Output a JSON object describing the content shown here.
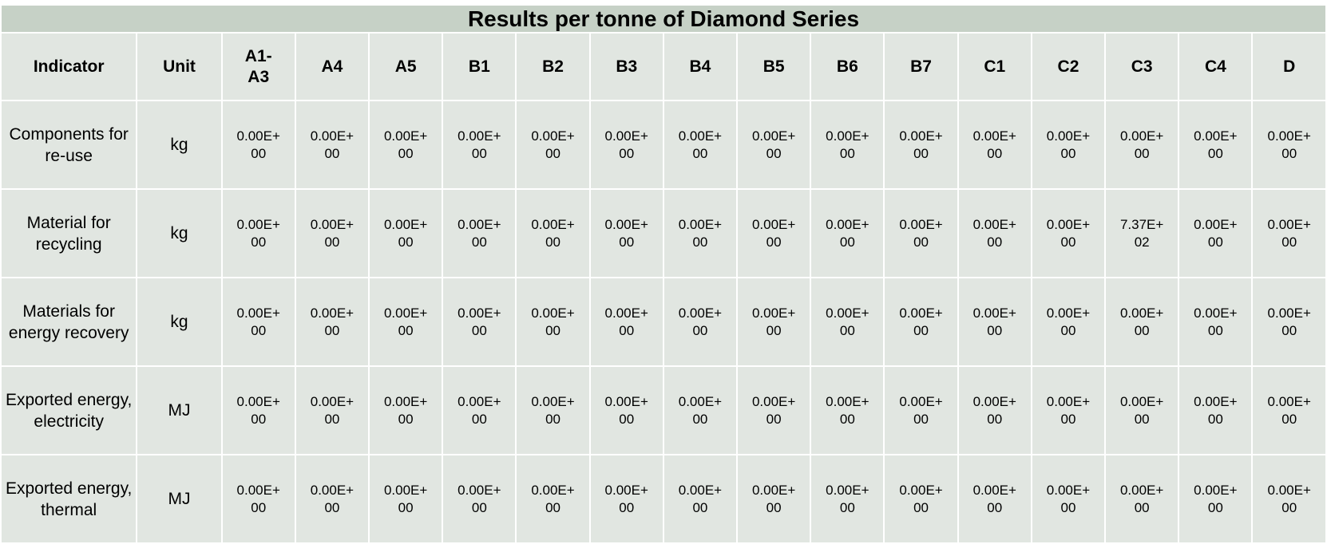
{
  "table": {
    "title": "Results per tonne of Diamond Series",
    "headers": [
      "Indicator",
      "Unit",
      "A1-A3",
      "A4",
      "A5",
      "B1",
      "B2",
      "B3",
      "B4",
      "B5",
      "B6",
      "B7",
      "C1",
      "C2",
      "C3",
      "C4",
      "D"
    ],
    "rows": [
      {
        "indicator": "Components for re-use",
        "unit": "kg",
        "values": [
          "0.00E+00",
          "0.00E+00",
          "0.00E+00",
          "0.00E+00",
          "0.00E+00",
          "0.00E+00",
          "0.00E+00",
          "0.00E+00",
          "0.00E+00",
          "0.00E+00",
          "0.00E+00",
          "0.00E+00",
          "0.00E+00",
          "0.00E+00",
          "0.00E+00"
        ]
      },
      {
        "indicator": "Material for recycling",
        "unit": "kg",
        "values": [
          "0.00E+00",
          "0.00E+00",
          "0.00E+00",
          "0.00E+00",
          "0.00E+00",
          "0.00E+00",
          "0.00E+00",
          "0.00E+00",
          "0.00E+00",
          "0.00E+00",
          "0.00E+00",
          "0.00E+00",
          "7.37E+02",
          "0.00E+00",
          "0.00E+00"
        ]
      },
      {
        "indicator": "Materials for energy recovery",
        "unit": "kg",
        "values": [
          "0.00E+00",
          "0.00E+00",
          "0.00E+00",
          "0.00E+00",
          "0.00E+00",
          "0.00E+00",
          "0.00E+00",
          "0.00E+00",
          "0.00E+00",
          "0.00E+00",
          "0.00E+00",
          "0.00E+00",
          "0.00E+00",
          "0.00E+00",
          "0.00E+00"
        ]
      },
      {
        "indicator": "Exported energy, electricity",
        "unit": "MJ",
        "values": [
          "0.00E+00",
          "0.00E+00",
          "0.00E+00",
          "0.00E+00",
          "0.00E+00",
          "0.00E+00",
          "0.00E+00",
          "0.00E+00",
          "0.00E+00",
          "0.00E+00",
          "0.00E+00",
          "0.00E+00",
          "0.00E+00",
          "0.00E+00",
          "0.00E+00"
        ]
      },
      {
        "indicator": "Exported energy, thermal",
        "unit": "MJ",
        "values": [
          "0.00E+00",
          "0.00E+00",
          "0.00E+00",
          "0.00E+00",
          "0.00E+00",
          "0.00E+00",
          "0.00E+00",
          "0.00E+00",
          "0.00E+00",
          "0.00E+00",
          "0.00E+00",
          "0.00E+00",
          "0.00E+00",
          "0.00E+00",
          "0.00E+00"
        ]
      }
    ]
  }
}
